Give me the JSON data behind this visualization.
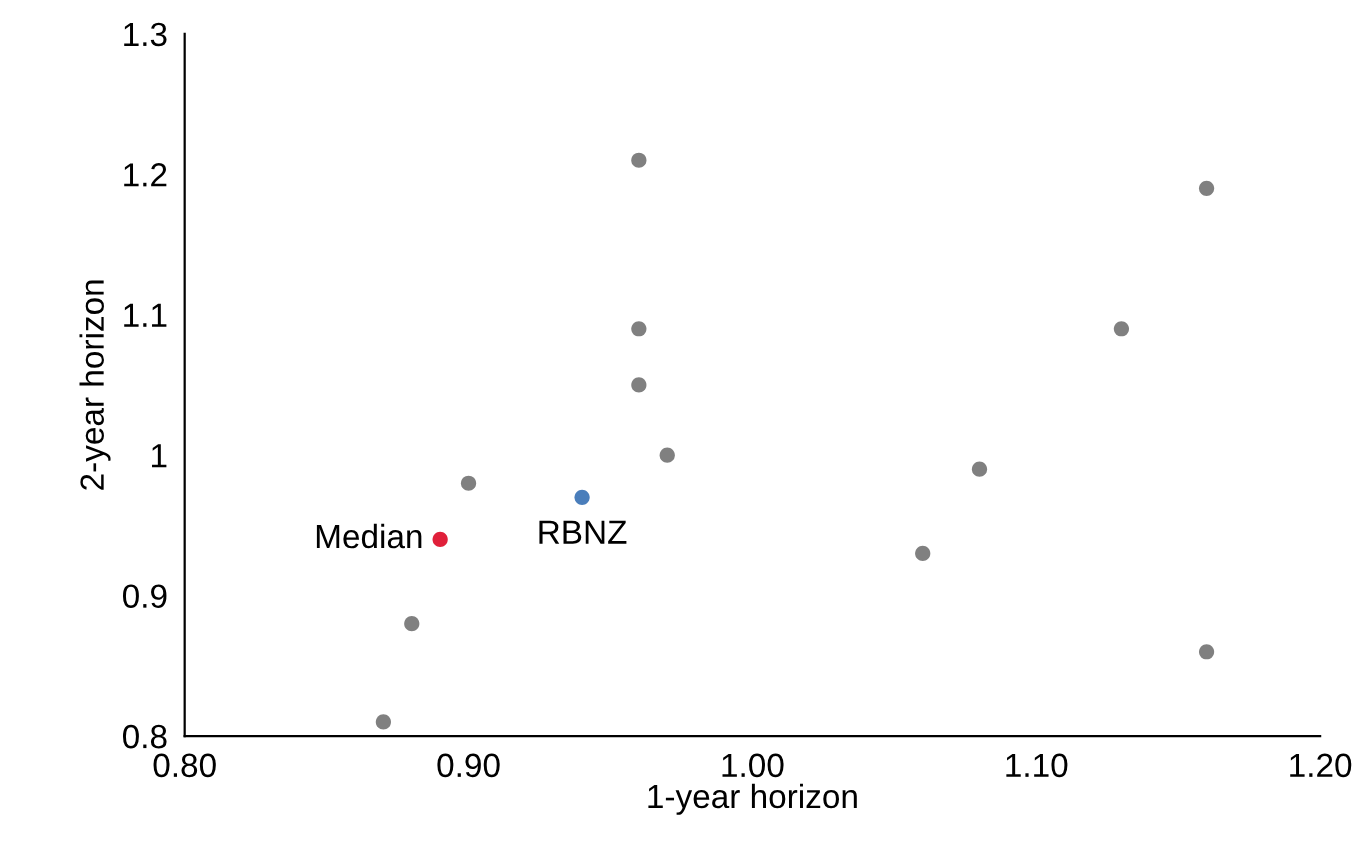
{
  "chart_data": {
    "type": "scatter",
    "xlabel": "1-year horizon",
    "ylabel": "2-year horizon",
    "series": [
      {
        "color": "#808080",
        "x": [
          0.96,
          0.96,
          0.96,
          0.97,
          0.9,
          0.88,
          0.87,
          1.16,
          1.13,
          1.08,
          1.06,
          1.16
        ],
        "values": [
          1.21,
          1.09,
          1.05,
          1.0,
          0.98,
          0.88,
          0.81,
          1.19,
          1.09,
          0.99,
          0.93,
          0.86
        ]
      },
      {
        "name": "Median",
        "color": "#e0203a",
        "x": [
          0.89
        ],
        "values": [
          0.94
        ]
      },
      {
        "name": "RBNZ",
        "color": "#4a7ebb",
        "x": [
          0.94
        ],
        "values": [
          0.97
        ]
      }
    ],
    "xlim": [
      0.8,
      1.2
    ],
    "xticks": [
      {
        "value": 0.8,
        "label": "0.80"
      },
      {
        "value": 0.9,
        "label": "0.90"
      },
      {
        "value": 1.0,
        "label": "1.00"
      },
      {
        "value": 1.1,
        "label": "1.10"
      },
      {
        "value": 1.2,
        "label": "1.20"
      }
    ],
    "ylim": [
      0.8,
      1.3
    ],
    "yticks": [
      0.8,
      0.9,
      1,
      1.1,
      1.2,
      1.3
    ],
    "grid": false,
    "legend": false,
    "marker": "circle"
  }
}
